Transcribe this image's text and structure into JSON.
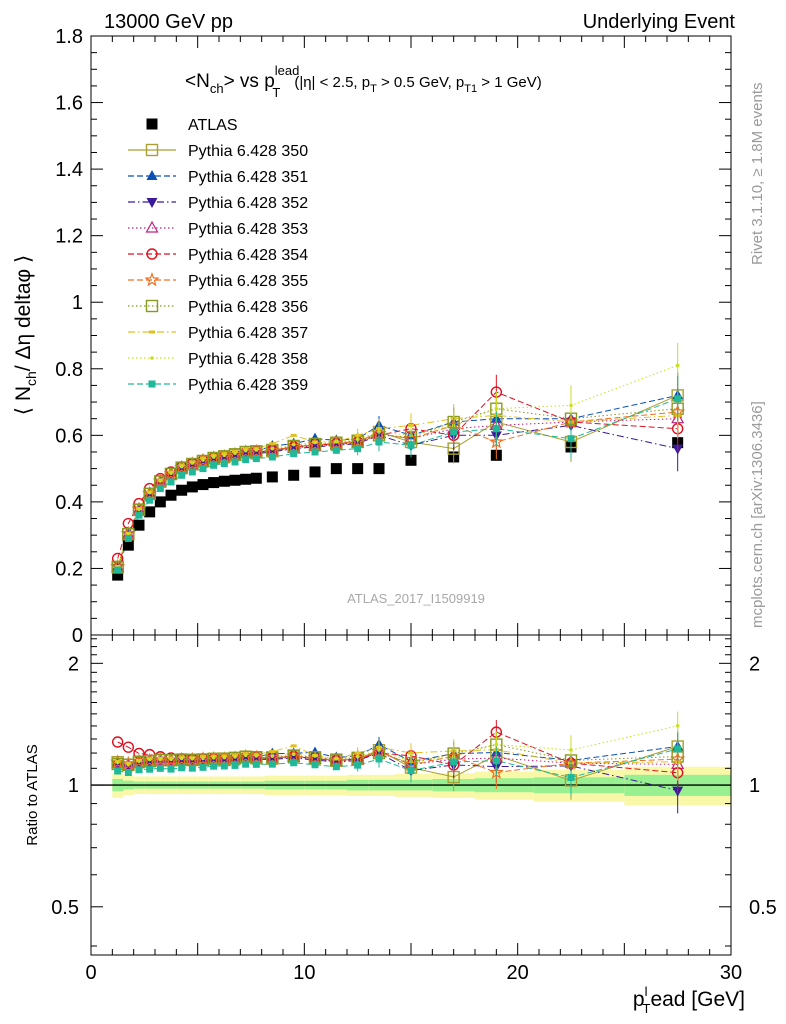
{
  "header": {
    "left": "13000 GeV pp",
    "right": "Underlying Event"
  },
  "side": {
    "rivet": "Rivet 3.1.10, ≥ 1.8M events",
    "mcplots": "mcplots.cern.ch [arXiv:1306.3436]"
  },
  "plot": {
    "title_main": "<N",
    "title_sub_ch": "ch",
    "title_vs": "> vs p",
    "title_sup_lead": "lead",
    "title_sub_T": "T",
    "title_cuts_a": "(|η| < 2.5, p",
    "title_cuts_T": "T",
    "title_cuts_b": " > 0.5 GeV, p",
    "title_cuts_T1": "T1",
    "title_cuts_c": " > 1 GeV)",
    "ylabel_main": "⟨ N",
    "ylabel_sub": "ch",
    "ylabel_rest": "/ Δη deltaφ ⟩",
    "ratio_ylabel": "Ratio to ATLAS",
    "xlabel_a": "p",
    "xlabel_sup": "l",
    "xlabel_sub": "T",
    "xlabel_b": "ead [GeV]",
    "analysis_id": "ATLAS_2017_I1509919",
    "main_yticks": [
      "0",
      "0.2",
      "0.4",
      "0.6",
      "0.8",
      "1",
      "1.2",
      "1.4",
      "1.6",
      "1.8"
    ],
    "ratio_yticks": [
      "0.5",
      "1",
      "2"
    ],
    "xticks": [
      "0",
      "10",
      "20",
      "30"
    ]
  },
  "chart_data": {
    "type": "scatter",
    "x_label": "p_T^lead [GeV]",
    "y_label": "<N_ch / Δη deltaφ>",
    "xlim": [
      0,
      30
    ],
    "ylim": [
      0,
      1.8
    ],
    "ratio_ylim": [
      0.38,
      2.35
    ],
    "ratio_log_scale": true,
    "legend_position": "top-left",
    "x": [
      1.25,
      1.75,
      2.25,
      2.75,
      3.25,
      3.75,
      4.25,
      4.75,
      5.25,
      5.75,
      6.25,
      6.75,
      7.25,
      7.75,
      8.5,
      9.5,
      10.5,
      11.5,
      12.5,
      13.5,
      15.0,
      17.0,
      19.0,
      22.5,
      27.5
    ],
    "series": [
      {
        "name": "ATLAS",
        "color": "#000000",
        "marker": "filled-square",
        "dash": "none",
        "values": [
          0.18,
          0.27,
          0.33,
          0.37,
          0.4,
          0.42,
          0.435,
          0.445,
          0.452,
          0.458,
          0.462,
          0.465,
          0.468,
          0.471,
          0.475,
          0.48,
          0.49,
          0.5,
          0.5,
          0.5,
          0.525,
          0.535,
          0.54,
          0.565,
          0.578
        ]
      },
      {
        "name": "Pythia 6.428 350",
        "color": "#a8a032",
        "marker": "open-square",
        "dash": "solid",
        "values": [
          0.205,
          0.303,
          0.377,
          0.424,
          0.462,
          0.484,
          0.502,
          0.513,
          0.522,
          0.531,
          0.535,
          0.541,
          0.549,
          0.549,
          0.552,
          0.565,
          0.57,
          0.574,
          0.58,
          0.61,
          0.58,
          0.56,
          0.64,
          0.58,
          0.72
        ]
      },
      {
        "name": "Pythia 6.428 351",
        "color": "#0b4fb4",
        "marker": "filled-triangle-up",
        "dash": "dashed",
        "values": [
          0.205,
          0.305,
          0.38,
          0.428,
          0.464,
          0.488,
          0.505,
          0.517,
          0.528,
          0.533,
          0.538,
          0.544,
          0.55,
          0.553,
          0.568,
          0.575,
          0.59,
          0.585,
          0.59,
          0.63,
          0.6,
          0.64,
          0.65,
          0.65,
          0.72
        ]
      },
      {
        "name": "Pythia 6.428 352",
        "color": "#3a1a9a",
        "marker": "filled-triangle-down",
        "dash": "dashdot",
        "values": [
          0.202,
          0.3,
          0.374,
          0.42,
          0.458,
          0.48,
          0.5,
          0.51,
          0.52,
          0.528,
          0.532,
          0.538,
          0.545,
          0.545,
          0.55,
          0.56,
          0.565,
          0.57,
          0.575,
          0.6,
          0.57,
          0.6,
          0.6,
          0.63,
          0.56
        ]
      },
      {
        "name": "Pythia 6.428 353",
        "color": "#c02080",
        "marker": "open-triangle-up",
        "dash": "dotted",
        "values": [
          0.204,
          0.302,
          0.376,
          0.422,
          0.46,
          0.482,
          0.502,
          0.512,
          0.522,
          0.53,
          0.534,
          0.54,
          0.547,
          0.548,
          0.553,
          0.562,
          0.568,
          0.572,
          0.578,
          0.605,
          0.59,
          0.62,
          0.63,
          0.64,
          0.65
        ]
      },
      {
        "name": "Pythia 6.428 354",
        "color": "#e01020",
        "marker": "open-circle",
        "dash": "dashed",
        "values": [
          0.23,
          0.335,
          0.395,
          0.44,
          0.47,
          0.49,
          0.505,
          0.515,
          0.523,
          0.532,
          0.536,
          0.54,
          0.548,
          0.55,
          0.555,
          0.565,
          0.57,
          0.575,
          0.58,
          0.6,
          0.62,
          0.6,
          0.73,
          0.64,
          0.62
        ]
      },
      {
        "name": "Pythia 6.428 355",
        "color": "#f07020",
        "marker": "open-star",
        "dash": "dashed",
        "values": [
          0.205,
          0.305,
          0.378,
          0.425,
          0.462,
          0.484,
          0.503,
          0.514,
          0.524,
          0.532,
          0.536,
          0.542,
          0.55,
          0.551,
          0.555,
          0.566,
          0.572,
          0.576,
          0.582,
          0.605,
          0.59,
          0.63,
          0.58,
          0.64,
          0.67
        ]
      },
      {
        "name": "Pythia 6.428 356",
        "color": "#8a9a20",
        "marker": "open-square",
        "dash": "dotted",
        "values": [
          0.203,
          0.303,
          0.376,
          0.424,
          0.461,
          0.484,
          0.503,
          0.514,
          0.523,
          0.532,
          0.537,
          0.543,
          0.55,
          0.552,
          0.556,
          0.568,
          0.574,
          0.578,
          0.584,
          0.6,
          0.595,
          0.64,
          0.68,
          0.65,
          0.68
        ]
      },
      {
        "name": "Pythia 6.428 357",
        "color": "#e0c020",
        "marker": "small-dash",
        "dash": "dashdot",
        "values": [
          0.206,
          0.306,
          0.38,
          0.43,
          0.466,
          0.49,
          0.51,
          0.52,
          0.532,
          0.54,
          0.546,
          0.552,
          0.56,
          0.56,
          0.575,
          0.6,
          0.58,
          0.58,
          0.6,
          0.62,
          0.63,
          0.65,
          0.66,
          0.64,
          0.66
        ]
      },
      {
        "name": "Pythia 6.428 358",
        "color": "#c8e020",
        "marker": "small-dot",
        "dash": "dotted",
        "values": [
          0.205,
          0.304,
          0.378,
          0.428,
          0.463,
          0.486,
          0.506,
          0.517,
          0.526,
          0.535,
          0.54,
          0.546,
          0.554,
          0.556,
          0.56,
          0.572,
          0.578,
          0.582,
          0.588,
          0.61,
          0.6,
          0.63,
          0.68,
          0.69,
          0.81
        ]
      },
      {
        "name": "Pythia 6.428 359",
        "color": "#20b898",
        "marker": "filled-small-square",
        "dash": "dashed",
        "values": [
          0.195,
          0.29,
          0.36,
          0.405,
          0.44,
          0.46,
          0.48,
          0.49,
          0.5,
          0.51,
          0.515,
          0.52,
          0.527,
          0.53,
          0.535,
          0.545,
          0.55,
          0.555,
          0.56,
          0.58,
          0.57,
          0.61,
          0.62,
          0.59,
          0.71
        ]
      }
    ],
    "atlas_band": {
      "stat_rel": [
        0.035,
        0.025,
        0.02,
        0.02,
        0.02,
        0.02,
        0.02,
        0.02,
        0.02,
        0.02,
        0.02,
        0.02,
        0.02,
        0.02,
        0.025,
        0.025,
        0.025,
        0.025,
        0.03,
        0.03,
        0.03,
        0.035,
        0.04,
        0.045,
        0.06
      ],
      "total_rel": [
        0.07,
        0.055,
        0.05,
        0.05,
        0.05,
        0.05,
        0.05,
        0.05,
        0.05,
        0.05,
        0.05,
        0.05,
        0.05,
        0.05,
        0.055,
        0.055,
        0.055,
        0.055,
        0.06,
        0.06,
        0.065,
        0.07,
        0.08,
        0.09,
        0.11
      ],
      "stat_color": "#98f090",
      "total_color": "#f8f8a8"
    }
  }
}
